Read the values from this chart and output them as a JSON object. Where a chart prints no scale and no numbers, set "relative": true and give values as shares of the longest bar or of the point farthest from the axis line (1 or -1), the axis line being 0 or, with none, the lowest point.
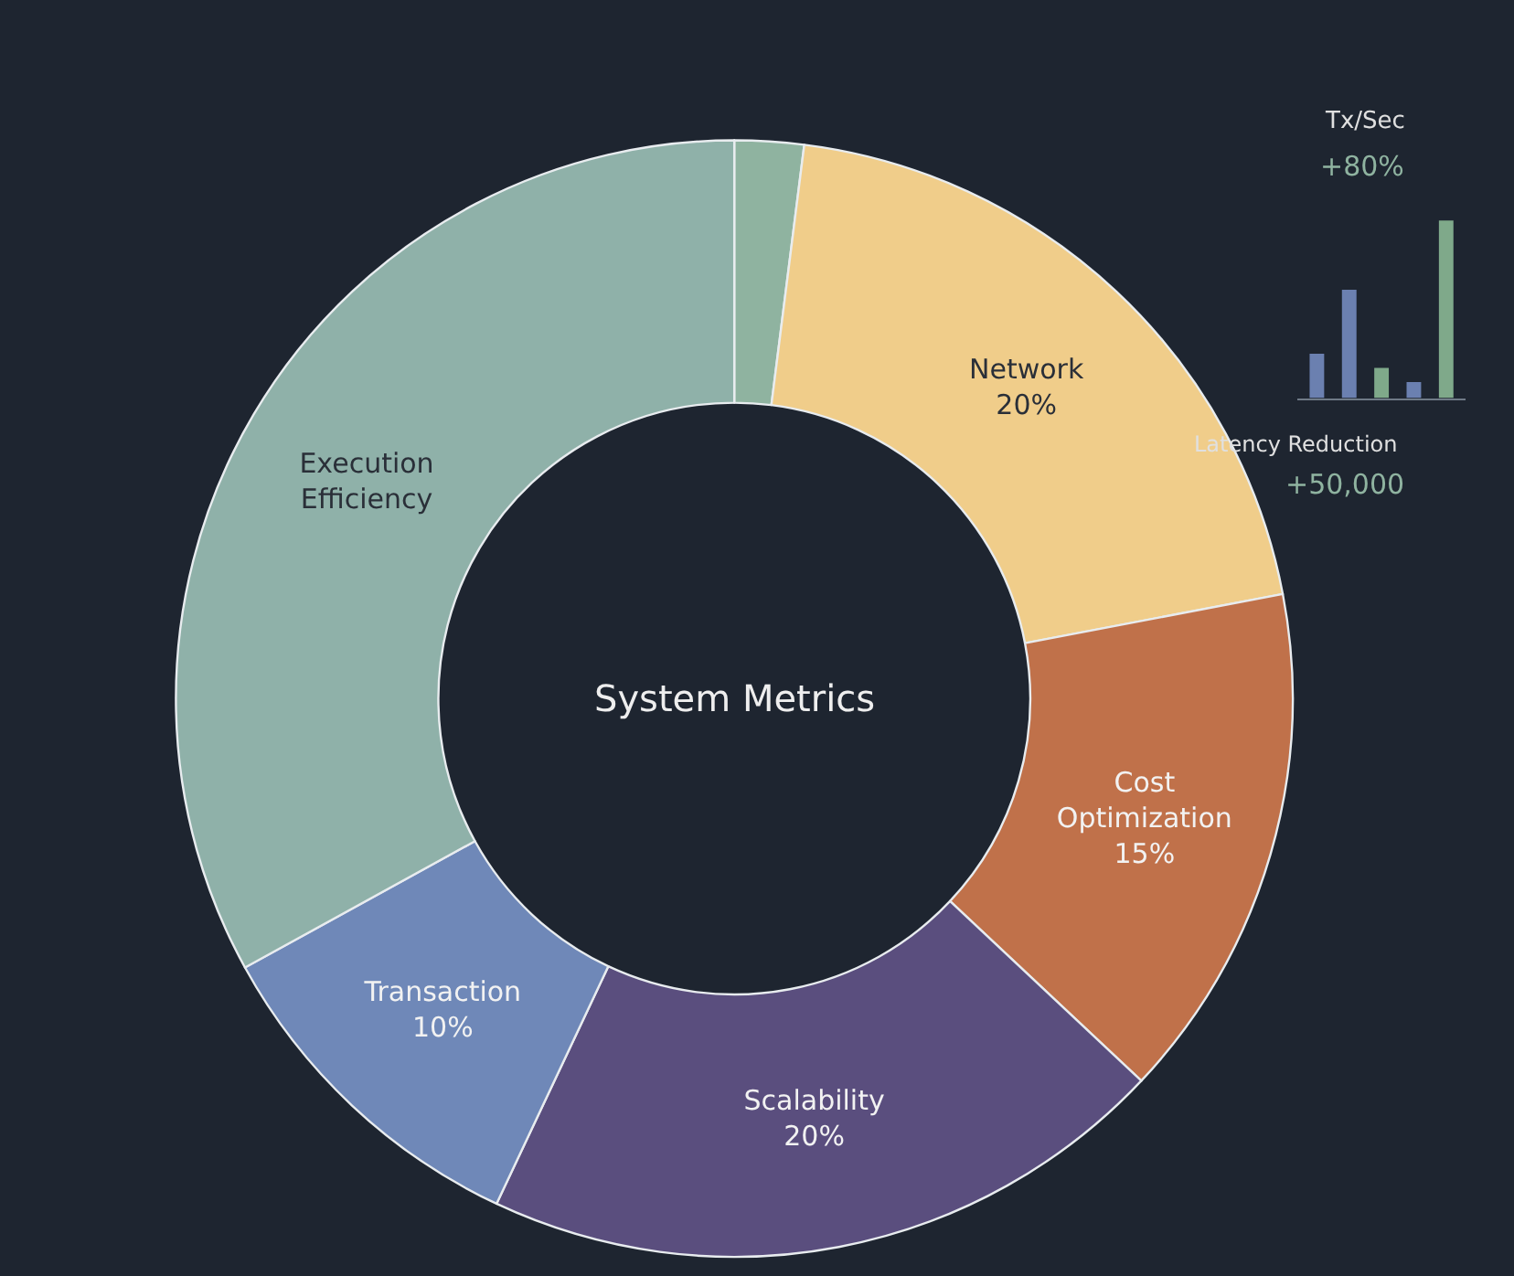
{
  "chart_data": [
    {
      "type": "donut",
      "title": "System Metrics",
      "categories": [
        null,
        "Network",
        "Cost Optimization",
        "Scalability",
        "Transaction",
        "Execution Efficiency"
      ],
      "values": [
        2,
        20,
        15,
        20,
        10,
        33
      ],
      "value_labels": [
        null,
        "20%",
        "15%",
        "20%",
        "10%",
        null
      ],
      "colors": [
        "#8fb3a0",
        "#f0cd8a",
        "#c0714a",
        "#5a4e7e",
        "#6f88b8",
        "#8fb1a9"
      ]
    },
    {
      "type": "bar",
      "relative": true,
      "categories": [
        null,
        null,
        null,
        null,
        null
      ],
      "values": [
        0.25,
        0.61,
        0.17,
        0.09,
        1
      ],
      "colors": [
        "#6b80b0",
        "#6b80b0",
        "#7fa98a",
        "#6b80b0",
        "#7fa98a"
      ],
      "annotations": [
        "Tx/Sec",
        "+80%",
        "Latency Reduction",
        "+50,000"
      ]
    }
  ]
}
